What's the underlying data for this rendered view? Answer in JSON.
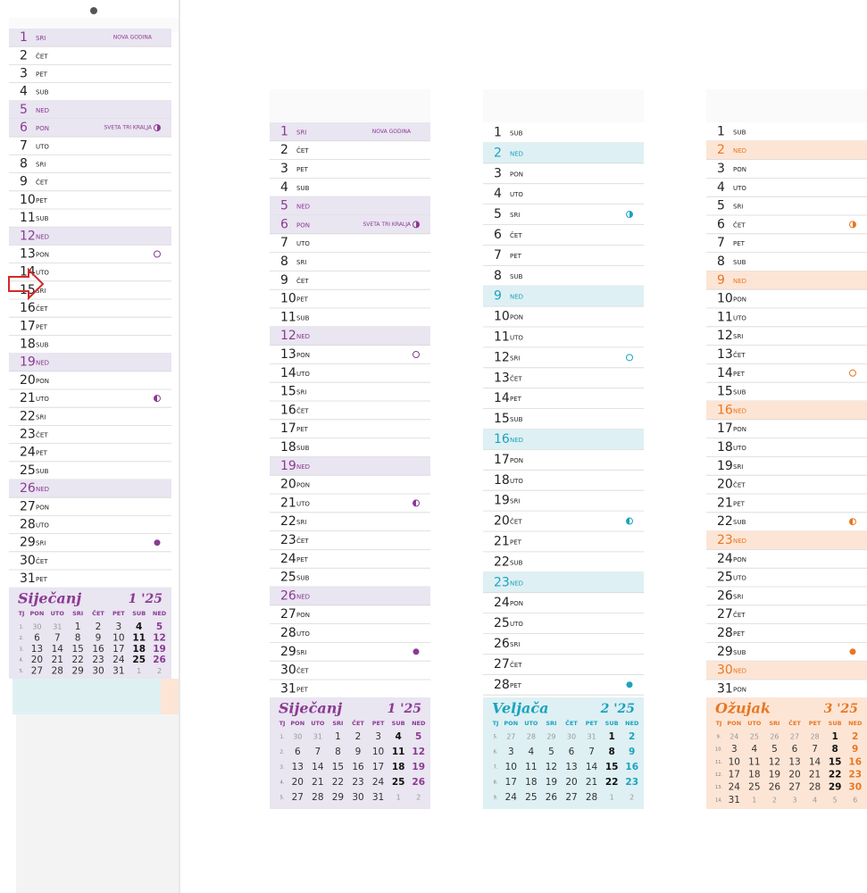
{
  "months": [
    {
      "name": "Siječanj",
      "code": "1 '25",
      "color": "#8b3a93",
      "highlight": "#e9e5f1",
      "days": [
        {
          "d": 1,
          "w": "SRI",
          "hl": true,
          "h": "NOVA GODINA"
        },
        {
          "d": 2,
          "w": "ČET"
        },
        {
          "d": 3,
          "w": "PET"
        },
        {
          "d": 4,
          "w": "SUB"
        },
        {
          "d": 5,
          "w": "NED",
          "hl": true
        },
        {
          "d": 6,
          "w": "PON",
          "hl": true,
          "h": "SVETA TRI KRALJA",
          "moon": "first"
        },
        {
          "d": 7,
          "w": "UTO"
        },
        {
          "d": 8,
          "w": "SRI"
        },
        {
          "d": 9,
          "w": "ČET"
        },
        {
          "d": 10,
          "w": "PET"
        },
        {
          "d": 11,
          "w": "SUB"
        },
        {
          "d": 12,
          "w": "NED",
          "hl": true
        },
        {
          "d": 13,
          "w": "PON",
          "moon": "full"
        },
        {
          "d": 14,
          "w": "UTO"
        },
        {
          "d": 15,
          "w": "SRI"
        },
        {
          "d": 16,
          "w": "ČET"
        },
        {
          "d": 17,
          "w": "PET"
        },
        {
          "d": 18,
          "w": "SUB"
        },
        {
          "d": 19,
          "w": "NED",
          "hl": true
        },
        {
          "d": 20,
          "w": "PON"
        },
        {
          "d": 21,
          "w": "UTO",
          "moon": "last"
        },
        {
          "d": 22,
          "w": "SRI"
        },
        {
          "d": 23,
          "w": "ČET"
        },
        {
          "d": 24,
          "w": "PET"
        },
        {
          "d": 25,
          "w": "SUB"
        },
        {
          "d": 26,
          "w": "NED",
          "hl": true
        },
        {
          "d": 27,
          "w": "PON"
        },
        {
          "d": 28,
          "w": "UTO"
        },
        {
          "d": 29,
          "w": "SRI",
          "moon": "new"
        },
        {
          "d": 30,
          "w": "ČET"
        },
        {
          "d": 31,
          "w": "PET"
        }
      ],
      "header": [
        "TJ",
        "PON",
        "UTO",
        "SRI",
        "ČET",
        "PET",
        "SUB",
        "NED"
      ],
      "weeks": [
        {
          "wk": "1.",
          "days": [
            30,
            31,
            1,
            2,
            3,
            4,
            5
          ]
        },
        {
          "wk": "2.",
          "days": [
            6,
            7,
            8,
            9,
            10,
            11,
            12
          ]
        },
        {
          "wk": "3.",
          "days": [
            13,
            14,
            15,
            16,
            17,
            18,
            19
          ]
        },
        {
          "wk": "4.",
          "days": [
            20,
            21,
            22,
            23,
            24,
            25,
            26
          ]
        },
        {
          "wk": "5.",
          "days": [
            27,
            28,
            29,
            30,
            31,
            1,
            2
          ]
        }
      ]
    },
    {
      "name": "Veljača",
      "code": "2 '25",
      "color": "#1aa3bf",
      "highlight": "#def0f3",
      "days": [
        {
          "d": 1,
          "w": "SUB"
        },
        {
          "d": 2,
          "w": "NED",
          "hl": true
        },
        {
          "d": 3,
          "w": "PON"
        },
        {
          "d": 4,
          "w": "UTO"
        },
        {
          "d": 5,
          "w": "SRI",
          "moon": "first"
        },
        {
          "d": 6,
          "w": "ČET"
        },
        {
          "d": 7,
          "w": "PET"
        },
        {
          "d": 8,
          "w": "SUB"
        },
        {
          "d": 9,
          "w": "NED",
          "hl": true
        },
        {
          "d": 10,
          "w": "PON"
        },
        {
          "d": 11,
          "w": "UTO"
        },
        {
          "d": 12,
          "w": "SRI",
          "moon": "full"
        },
        {
          "d": 13,
          "w": "ČET"
        },
        {
          "d": 14,
          "w": "PET"
        },
        {
          "d": 15,
          "w": "SUB"
        },
        {
          "d": 16,
          "w": "NED",
          "hl": true
        },
        {
          "d": 17,
          "w": "PON"
        },
        {
          "d": 18,
          "w": "UTO"
        },
        {
          "d": 19,
          "w": "SRI"
        },
        {
          "d": 20,
          "w": "ČET",
          "moon": "last"
        },
        {
          "d": 21,
          "w": "PET"
        },
        {
          "d": 22,
          "w": "SUB"
        },
        {
          "d": 23,
          "w": "NED",
          "hl": true
        },
        {
          "d": 24,
          "w": "PON"
        },
        {
          "d": 25,
          "w": "UTO"
        },
        {
          "d": 26,
          "w": "SRI"
        },
        {
          "d": 27,
          "w": "ČET"
        },
        {
          "d": 28,
          "w": "PET",
          "moon": "new"
        }
      ],
      "header": [
        "TJ",
        "PON",
        "UTO",
        "SRI",
        "ČET",
        "PET",
        "SUB",
        "NED"
      ],
      "weeks": [
        {
          "wk": "5.",
          "days": [
            27,
            28,
            29,
            30,
            31,
            1,
            2
          ]
        },
        {
          "wk": "6.",
          "days": [
            3,
            4,
            5,
            6,
            7,
            8,
            9
          ]
        },
        {
          "wk": "7.",
          "days": [
            10,
            11,
            12,
            13,
            14,
            15,
            16
          ]
        },
        {
          "wk": "8.",
          "days": [
            17,
            18,
            19,
            20,
            21,
            22,
            23
          ]
        },
        {
          "wk": "9.",
          "days": [
            24,
            25,
            26,
            27,
            28,
            1,
            2
          ]
        }
      ]
    },
    {
      "name": "Ožujak",
      "code": "3 '25",
      "color": "#e87722",
      "highlight": "#fde5d6",
      "days": [
        {
          "d": 1,
          "w": "SUB"
        },
        {
          "d": 2,
          "w": "NED",
          "hl": true
        },
        {
          "d": 3,
          "w": "PON"
        },
        {
          "d": 4,
          "w": "UTO"
        },
        {
          "d": 5,
          "w": "SRI"
        },
        {
          "d": 6,
          "w": "ČET",
          "moon": "first"
        },
        {
          "d": 7,
          "w": "PET"
        },
        {
          "d": 8,
          "w": "SUB"
        },
        {
          "d": 9,
          "w": "NED",
          "hl": true
        },
        {
          "d": 10,
          "w": "PON"
        },
        {
          "d": 11,
          "w": "UTO"
        },
        {
          "d": 12,
          "w": "SRI"
        },
        {
          "d": 13,
          "w": "ČET"
        },
        {
          "d": 14,
          "w": "PET",
          "moon": "full"
        },
        {
          "d": 15,
          "w": "SUB"
        },
        {
          "d": 16,
          "w": "NED",
          "hl": true
        },
        {
          "d": 17,
          "w": "PON"
        },
        {
          "d": 18,
          "w": "UTO"
        },
        {
          "d": 19,
          "w": "SRI"
        },
        {
          "d": 20,
          "w": "ČET"
        },
        {
          "d": 21,
          "w": "PET"
        },
        {
          "d": 22,
          "w": "SUB",
          "moon": "last"
        },
        {
          "d": 23,
          "w": "NED",
          "hl": true
        },
        {
          "d": 24,
          "w": "PON"
        },
        {
          "d": 25,
          "w": "UTO"
        },
        {
          "d": 26,
          "w": "SRI"
        },
        {
          "d": 27,
          "w": "ČET"
        },
        {
          "d": 28,
          "w": "PET"
        },
        {
          "d": 29,
          "w": "SUB",
          "moon": "new"
        },
        {
          "d": 30,
          "w": "NED",
          "hl": true
        },
        {
          "d": 31,
          "w": "PON"
        }
      ],
      "header": [
        "TJ",
        "PON",
        "UTO",
        "SRI",
        "ČET",
        "PET",
        "SUB",
        "NED"
      ],
      "weeks": [
        {
          "wk": "9.",
          "days": [
            24,
            25,
            26,
            27,
            28,
            1,
            2
          ]
        },
        {
          "wk": "10.",
          "days": [
            3,
            4,
            5,
            6,
            7,
            8,
            9
          ]
        },
        {
          "wk": "11.",
          "days": [
            10,
            11,
            12,
            13,
            14,
            15,
            16
          ]
        },
        {
          "wk": "12.",
          "days": [
            17,
            18,
            19,
            20,
            21,
            22,
            23
          ]
        },
        {
          "wk": "13.",
          "days": [
            24,
            25,
            26,
            27,
            28,
            29,
            30
          ]
        },
        {
          "wk": "14.",
          "days": [
            31,
            1,
            2,
            3,
            4,
            5,
            6
          ]
        }
      ]
    }
  ]
}
